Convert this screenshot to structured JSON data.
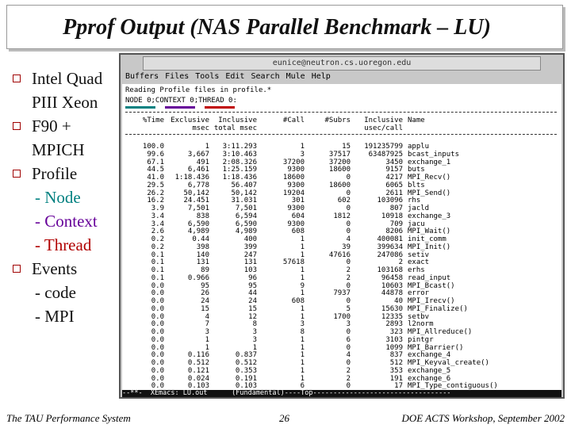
{
  "title": "Pprof Output (NAS Parallel Benchmark – LU)",
  "bullets": [
    {
      "text": "Intel Quad PIII Xeon"
    },
    {
      "text": "F90 + MPICH"
    },
    {
      "text": "Profile",
      "subitems": [
        "- Node",
        "- Context",
        "- Thread"
      ]
    },
    {
      "text": "Events",
      "subitems": [
        "- code",
        "- MPI"
      ]
    }
  ],
  "window": {
    "title_bar": "eunice@neutron.cs.uoregon.edu",
    "menu": [
      "Buffers",
      "Files",
      "Tools",
      "Edit",
      "Search",
      "Mule",
      "Help"
    ],
    "status_line": "Reading Profile files in profile.*",
    "context_line": "NODE 0;CONTEXT 0;THREAD 0:",
    "columns": [
      {
        "line1": "%Time"
      },
      {
        "line1": "Exclusive",
        "line2": "msec"
      },
      {
        "line1": "Inclusive",
        "line2": "total msec"
      },
      {
        "line1": "#Call"
      },
      {
        "line1": "#Subrs"
      },
      {
        "line1": "Inclusive",
        "line2": "usec/call"
      },
      {
        "line1": "Name"
      }
    ],
    "rows": [
      [
        "100.0",
        "1",
        "3:11.293",
        "1",
        "15",
        "191235799",
        "applu"
      ],
      [
        "99.6",
        "3,667",
        "3:10.463",
        "3",
        "37517",
        "63487925",
        "bcast_inputs"
      ],
      [
        "67.1",
        "491",
        "2:08.326",
        "37200",
        "37200",
        "3450",
        "exchange_1"
      ],
      [
        "44.5",
        "6,461",
        "1:25.159",
        "9300",
        "18600",
        "9157",
        "buts"
      ],
      [
        "41.0",
        "1:18.436",
        "1:18.436",
        "18600",
        "0",
        "4217",
        "MPI_Recv()"
      ],
      [
        "29.5",
        "6,778",
        "56.407",
        "9300",
        "18600",
        "6065",
        "blts"
      ],
      [
        "26.2",
        "50,142",
        "50,142",
        "19204",
        "0",
        "2611",
        "MPI_Send()"
      ],
      [
        "16.2",
        "24.451",
        "31.031",
        "301",
        "602",
        "103096",
        "rhs"
      ],
      [
        "3.9",
        "7,501",
        "7,501",
        "9300",
        "0",
        "807",
        "jacld"
      ],
      [
        "3.4",
        "838",
        "6,594",
        "604",
        "1812",
        "10918",
        "exchange_3"
      ],
      [
        "3.4",
        "6,590",
        "6,590",
        "9300",
        "0",
        "709",
        "jacu"
      ],
      [
        "2.6",
        "4,989",
        "4,989",
        "608",
        "0",
        "8206",
        "MPI_Wait()"
      ],
      [
        "0.2",
        "0.44",
        "400",
        "1",
        "4",
        "400081",
        "init_comm"
      ],
      [
        "0.2",
        "398",
        "399",
        "1",
        "39",
        "399634",
        "MPI_Init()"
      ],
      [
        "0.1",
        "140",
        "247",
        "1",
        "47616",
        "247086",
        "setiv"
      ],
      [
        "0.1",
        "131",
        "131",
        "57618",
        "0",
        "2",
        "exact"
      ],
      [
        "0.1",
        "89",
        "103",
        "1",
        "2",
        "103168",
        "erhs"
      ],
      [
        "0.1",
        "0.966",
        "96",
        "1",
        "2",
        "96458",
        "read_input"
      ],
      [
        "0.0",
        "95",
        "95",
        "9",
        "0",
        "10603",
        "MPI_Bcast()"
      ],
      [
        "0.0",
        "26",
        "44",
        "1",
        "7937",
        "44878",
        "error"
      ],
      [
        "0.0",
        "24",
        "24",
        "608",
        "0",
        "40",
        "MPI_Irecv()"
      ],
      [
        "0.0",
        "15",
        "15",
        "1",
        "5",
        "15630",
        "MPI_Finalize()"
      ],
      [
        "0.0",
        "4",
        "12",
        "1",
        "1700",
        "12335",
        "setbv"
      ],
      [
        "0.0",
        "7",
        "8",
        "3",
        "3",
        "2893",
        "l2norm"
      ],
      [
        "0.0",
        "3",
        "3",
        "8",
        "0",
        "323",
        "MPI_Allreduce()"
      ],
      [
        "0.0",
        "1",
        "3",
        "1",
        "6",
        "3103",
        "pintgr"
      ],
      [
        "0.0",
        "1",
        "1",
        "1",
        "0",
        "1099",
        "MPI_Barrier()"
      ],
      [
        "0.0",
        "0.116",
        "0.837",
        "1",
        "4",
        "837",
        "exchange_4"
      ],
      [
        "0.0",
        "0.512",
        "0.512",
        "1",
        "0",
        "512",
        "MPI_Keyval_create()"
      ],
      [
        "0.0",
        "0.121",
        "0.353",
        "1",
        "2",
        "353",
        "exchange_5"
      ],
      [
        "0.0",
        "0.024",
        "0.191",
        "1",
        "2",
        "191",
        "exchange_6"
      ],
      [
        "0.0",
        "0.103",
        "0.103",
        "6",
        "0",
        "17",
        "MPI_Type_contiguous()"
      ]
    ],
    "mode_line": "--**-  XEmacs: LU.out      (Fundamental)----Top----------------------------------"
  },
  "footer": {
    "left": "The TAU Performance System",
    "page": "26",
    "right": "DOE ACTS Workshop, September 2002"
  }
}
